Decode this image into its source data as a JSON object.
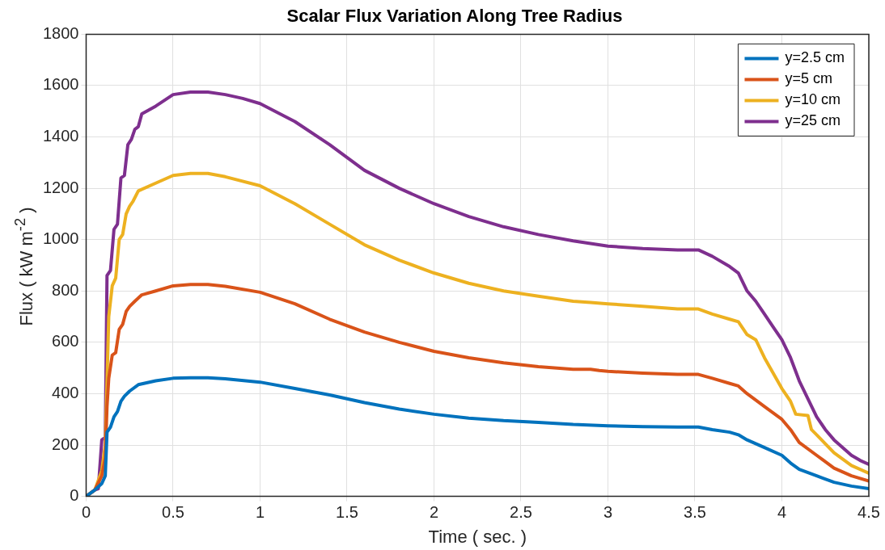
{
  "chart_data": {
    "type": "line",
    "title": "Scalar Flux Variation Along Tree Radius",
    "xlabel": "Time ( sec. )",
    "ylabel": "Flux ( kW m$^{-2}$ )",
    "xlim": [
      0,
      4.5
    ],
    "xticks": [
      0,
      0.5,
      1,
      1.5,
      2,
      2.5,
      3,
      3.5,
      4,
      4.5
    ],
    "ylim": [
      0,
      1800
    ],
    "yticks": [
      0,
      200,
      400,
      600,
      800,
      1000,
      1200,
      1400,
      1600,
      1800
    ],
    "grid": true,
    "legend": "top right",
    "marker": "none",
    "line_style": "solid",
    "series": [
      {
        "name": "y=2.5 cm",
        "color": "#0072bd",
        "x": [
          0,
          0.05,
          0.09,
          0.11,
          0.12,
          0.14,
          0.16,
          0.18,
          0.2,
          0.22,
          0.25,
          0.3,
          0.4,
          0.5,
          0.6,
          0.7,
          0.8,
          1.0,
          1.2,
          1.4,
          1.6,
          1.8,
          2.0,
          2.2,
          2.4,
          2.6,
          2.8,
          3.0,
          3.2,
          3.4,
          3.52,
          3.6,
          3.7,
          3.75,
          3.8,
          3.9,
          4.0,
          4.05,
          4.1,
          4.2,
          4.3,
          4.4,
          4.5
        ],
        "values": [
          0,
          25,
          50,
          80,
          250,
          270,
          310,
          330,
          370,
          390,
          410,
          435,
          450,
          460,
          462,
          462,
          458,
          445,
          420,
          395,
          365,
          340,
          320,
          305,
          295,
          288,
          280,
          275,
          272,
          270,
          270,
          260,
          250,
          240,
          220,
          190,
          160,
          130,
          105,
          80,
          55,
          40,
          30
        ]
      },
      {
        "name": "y=5 cm",
        "color": "#d95319",
        "x": [
          0,
          0.05,
          0.09,
          0.11,
          0.12,
          0.13,
          0.15,
          0.17,
          0.19,
          0.21,
          0.23,
          0.25,
          0.28,
          0.32,
          0.4,
          0.5,
          0.6,
          0.7,
          0.8,
          1.0,
          1.2,
          1.4,
          1.6,
          1.8,
          2.0,
          2.2,
          2.4,
          2.6,
          2.8,
          2.9,
          2.95,
          3.0,
          3.2,
          3.4,
          3.52,
          3.6,
          3.7,
          3.75,
          3.8,
          3.9,
          4.0,
          4.05,
          4.1,
          4.2,
          4.3,
          4.4,
          4.5
        ],
        "values": [
          0,
          25,
          80,
          150,
          350,
          460,
          550,
          560,
          650,
          670,
          720,
          740,
          760,
          785,
          800,
          820,
          825,
          825,
          818,
          795,
          750,
          690,
          640,
          600,
          565,
          540,
          520,
          505,
          495,
          495,
          490,
          487,
          480,
          475,
          475,
          460,
          440,
          430,
          400,
          350,
          300,
          260,
          210,
          160,
          110,
          80,
          60
        ]
      },
      {
        "name": "y=10 cm",
        "color": "#edb120",
        "x": [
          0,
          0.05,
          0.09,
          0.11,
          0.13,
          0.15,
          0.17,
          0.19,
          0.21,
          0.23,
          0.25,
          0.27,
          0.3,
          0.4,
          0.5,
          0.6,
          0.7,
          0.8,
          1.0,
          1.2,
          1.4,
          1.6,
          1.8,
          2.0,
          2.2,
          2.4,
          2.6,
          2.8,
          2.9,
          3.0,
          3.2,
          3.4,
          3.52,
          3.6,
          3.7,
          3.75,
          3.8,
          3.85,
          3.9,
          3.95,
          4.0,
          4.05,
          4.08,
          4.15,
          4.17,
          4.2,
          4.3,
          4.4,
          4.5
        ],
        "values": [
          0,
          25,
          100,
          200,
          700,
          820,
          850,
          1000,
          1020,
          1100,
          1130,
          1150,
          1190,
          1220,
          1250,
          1258,
          1258,
          1245,
          1210,
          1140,
          1060,
          980,
          920,
          870,
          830,
          800,
          780,
          760,
          755,
          750,
          740,
          730,
          730,
          710,
          690,
          680,
          630,
          610,
          540,
          480,
          420,
          370,
          320,
          315,
          260,
          240,
          170,
          120,
          90
        ]
      },
      {
        "name": "y=25 cm",
        "color": "#7e2f8e",
        "x": [
          0,
          0.05,
          0.07,
          0.09,
          0.11,
          0.12,
          0.14,
          0.16,
          0.18,
          0.2,
          0.22,
          0.24,
          0.26,
          0.28,
          0.3,
          0.32,
          0.4,
          0.5,
          0.6,
          0.7,
          0.8,
          0.9,
          1.0,
          1.2,
          1.4,
          1.6,
          1.8,
          2.0,
          2.2,
          2.4,
          2.6,
          2.8,
          3.0,
          3.2,
          3.4,
          3.52,
          3.6,
          3.7,
          3.75,
          3.8,
          3.85,
          3.9,
          3.95,
          4.0,
          4.05,
          4.1,
          4.15,
          4.2,
          4.25,
          4.3,
          4.35,
          4.4,
          4.45,
          4.5
        ],
        "values": [
          0,
          25,
          30,
          220,
          230,
          860,
          880,
          1040,
          1060,
          1240,
          1250,
          1370,
          1390,
          1430,
          1440,
          1490,
          1520,
          1565,
          1575,
          1575,
          1565,
          1550,
          1530,
          1460,
          1370,
          1270,
          1200,
          1140,
          1090,
          1050,
          1020,
          995,
          975,
          965,
          960,
          960,
          935,
          895,
          870,
          800,
          760,
          710,
          660,
          610,
          540,
          450,
          380,
          310,
          260,
          220,
          190,
          160,
          140,
          125
        ]
      }
    ]
  }
}
